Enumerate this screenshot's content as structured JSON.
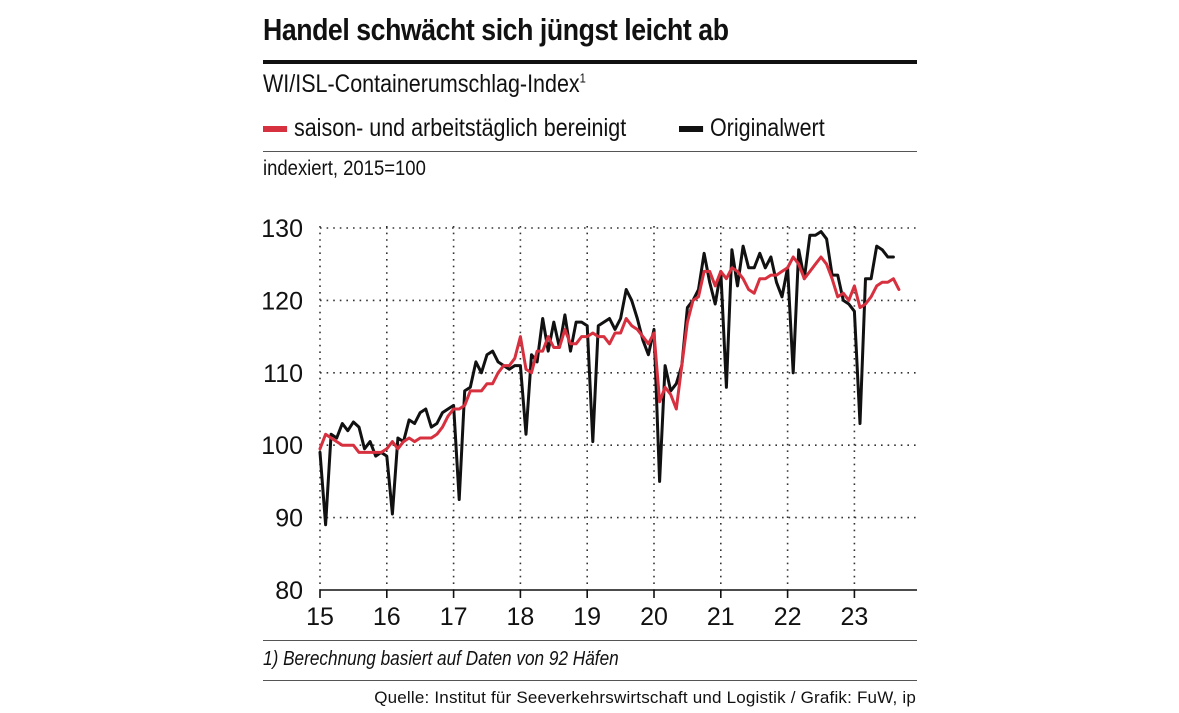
{
  "title": "Handel schwächt sich jüngst leicht ab",
  "subtitle": "WI/ISL-Containerumschlag-Index",
  "subtitle_footnote_mark": "1",
  "legend": {
    "adjusted_label": "saison- und arbeitstäglich bereinigt",
    "original_label": "Originalwert"
  },
  "unit_label": "indexiert, 2015=100",
  "footnote": "1) Berechnung basiert auf Daten von 92 Häfen",
  "source": "Quelle: Institut für Seeverkehrswirtschaft und Logistik  / Grafik: FuW, ip",
  "colors": {
    "adjusted": "#d7303f",
    "original": "#111111",
    "grid": "#333333"
  },
  "chart_data": {
    "type": "line",
    "title": "Handel schwächt sich jüngst leicht ab",
    "ylabel": "indexiert, 2015=100",
    "ylim": [
      80,
      130
    ],
    "yticks": [
      130,
      120,
      110,
      100,
      90,
      80
    ],
    "x_start": 2015.0,
    "x_step": 0.0833333,
    "xlim": [
      2015.0,
      2024.0
    ],
    "xticks": [
      {
        "value": 2015,
        "label": "15"
      },
      {
        "value": 2016,
        "label": "16"
      },
      {
        "value": 2017,
        "label": "17"
      },
      {
        "value": 2018,
        "label": "18"
      },
      {
        "value": 2019,
        "label": "19"
      },
      {
        "value": 2020,
        "label": "20"
      },
      {
        "value": 2021,
        "label": "21"
      },
      {
        "value": 2022,
        "label": "22"
      },
      {
        "value": 2023,
        "label": "23"
      }
    ],
    "grid": "dotted",
    "series": [
      {
        "name": "Originalwert",
        "color": "#111111",
        "values": [
          99,
          89,
          101.5,
          101,
          103,
          102,
          103.2,
          102.5,
          99.5,
          100.5,
          98.5,
          99,
          98.5,
          90.5,
          101,
          100.5,
          103.5,
          103,
          104.5,
          105,
          102.5,
          103,
          104.5,
          105,
          105.5,
          92.5,
          107.5,
          108,
          111.5,
          110,
          112.5,
          113,
          111.5,
          111,
          110.5,
          111,
          111,
          101.5,
          112.5,
          111.5,
          117.5,
          113,
          117,
          113.5,
          118,
          113,
          117,
          117,
          116.5,
          100.5,
          116.5,
          117,
          117.5,
          116,
          117.5,
          121.5,
          120,
          117.5,
          114.5,
          112.5,
          116,
          95,
          111,
          107.5,
          108.5,
          111,
          119,
          120,
          121.5,
          126.5,
          122.5,
          119.5,
          124,
          108,
          127,
          122,
          127.5,
          124.5,
          124.5,
          126.5,
          124.5,
          126,
          122.5,
          120.5,
          124.5,
          110,
          127,
          123,
          129,
          129,
          129.5,
          128.5,
          123.5,
          123.5,
          120,
          119.5,
          118.5,
          103,
          123,
          123,
          127.5,
          127,
          126,
          126
        ]
      },
      {
        "name": "saison- und arbeitstäglich bereinigt",
        "color": "#d7303f",
        "values": [
          99.5,
          101.5,
          101,
          100.5,
          100,
          100,
          100,
          99,
          99,
          99,
          99,
          99,
          99.5,
          100.5,
          99.5,
          100.5,
          101,
          100.5,
          101,
          101,
          101,
          101.5,
          102.5,
          104,
          105,
          105,
          105.5,
          107.5,
          107.5,
          107.5,
          108.5,
          108.5,
          110,
          111,
          111,
          112,
          115,
          110.5,
          110,
          113,
          113,
          115,
          113.5,
          113.5,
          116,
          114,
          114,
          115,
          115,
          115.5,
          115,
          115,
          114,
          115.5,
          115.5,
          117.5,
          116.5,
          116,
          115,
          114,
          115.5,
          106,
          108,
          107,
          105,
          111,
          117,
          120,
          120.5,
          124,
          124,
          122,
          124,
          123,
          124.5,
          124,
          123,
          121.5,
          121,
          123,
          123,
          123.5,
          123.5,
          124,
          124.5,
          126,
          125,
          123,
          124,
          125,
          126,
          125,
          123,
          120.5,
          121,
          120,
          122,
          119,
          119.5,
          120.5,
          122,
          122.5,
          122.5,
          123,
          121.5
        ]
      }
    ]
  }
}
